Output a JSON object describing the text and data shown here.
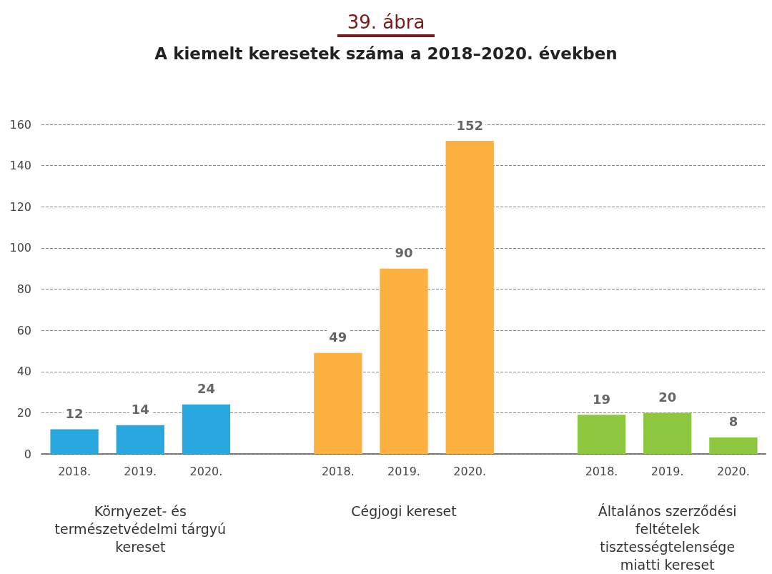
{
  "chart_data": {
    "type": "bar",
    "subtitle": "39. ábra",
    "title": "A kiemelt keresetek száma a 2018–2020. években",
    "categories": [
      "2018.",
      "2019.",
      "2020.",
      null,
      "2018.",
      "2019.",
      "2020.",
      null,
      "2018.",
      "2019.",
      "2020."
    ],
    "values": [
      12,
      14,
      24,
      null,
      49,
      90,
      152,
      null,
      19,
      20,
      8
    ],
    "colors": [
      "#29a8e0",
      "#29a8e0",
      "#29a8e0",
      null,
      "#fbb040",
      "#fbb040",
      "#fbb040",
      null,
      "#8dc63f",
      "#8dc63f",
      "#8dc63f"
    ],
    "annotations": [
      "Környezet- és\ntermészetvédelmi tárgyú\nkereset",
      "Cégjogi kereset",
      "Általános szerződési\nfeltételek\ntisztességtelensége\nmiatti kereset"
    ],
    "ylim": [
      0,
      160
    ],
    "yticks": [
      0,
      20,
      40,
      60,
      80,
      100,
      120,
      140,
      160
    ],
    "grid": "y",
    "data_labels": true
  }
}
